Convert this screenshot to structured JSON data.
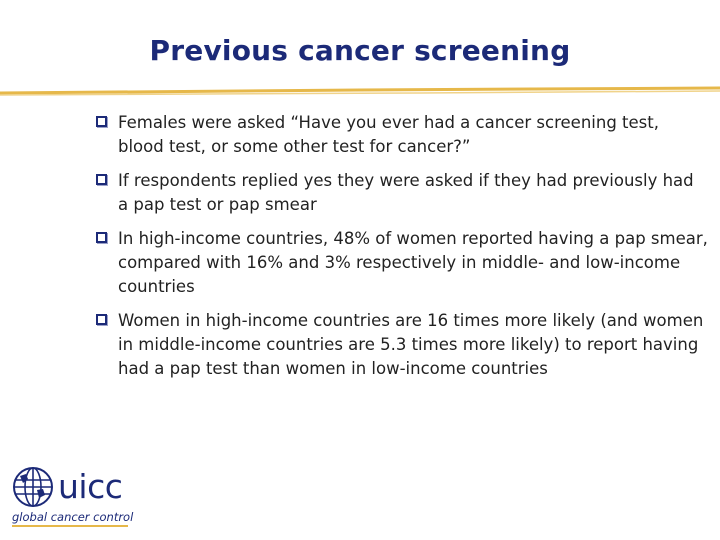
{
  "slide": {
    "title": "Previous cancer screening",
    "bullets": [
      "Females were asked “Have you ever had a cancer screening test, blood test, or some other test for cancer?”",
      "If respondents replied yes they were asked if they had previously had a pap test or pap smear",
      "In high-income countries, 48% of women reported having a pap smear, compared with 16% and 3% respectively in middle- and low-income countries",
      "Women in high-income countries are 16 times more likely (and women in middle-income countries are 5.3 times more likely) to report having had a pap test than women in low-income countries"
    ]
  },
  "logo": {
    "wordmark": "uicc",
    "tagline": "global cancer control"
  },
  "colors": {
    "title": "#1c2a78",
    "rule": "#e6b84a",
    "bullet_box": "#1c2a78",
    "text": "#222222"
  },
  "icons": {
    "bullet": "checkbox-bullet-icon",
    "logo": "globe-icon"
  }
}
